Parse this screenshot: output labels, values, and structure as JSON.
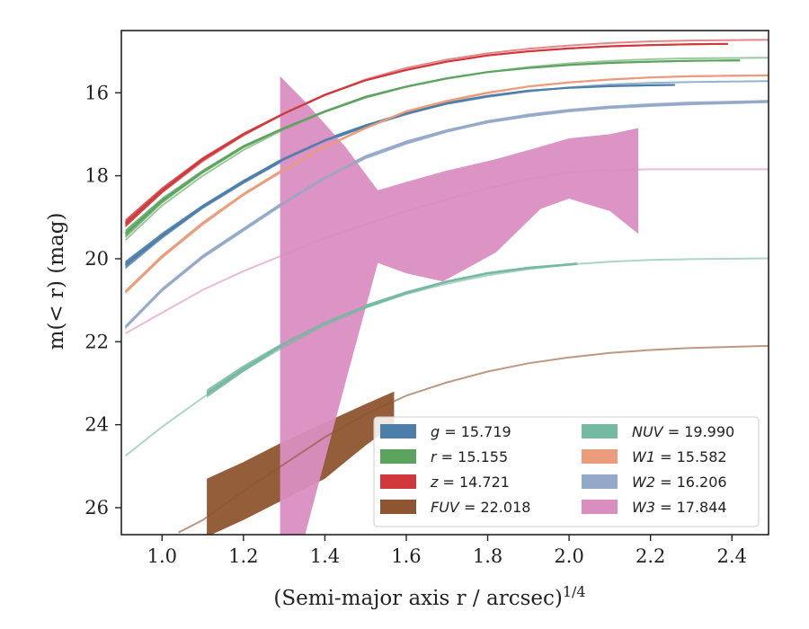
{
  "chart_data": {
    "type": "line",
    "xlabel": "(Semi-major axis r / arcsec)",
    "xlabel_exponent": "1/4",
    "ylabel": "m(< r) (mag)",
    "xlim": [
      0.9,
      2.49
    ],
    "ylim": [
      26.65,
      14.5
    ],
    "y_inverted": true,
    "x_ticks": [
      1.0,
      1.2,
      1.4,
      1.6,
      1.8,
      2.0,
      2.2,
      2.4
    ],
    "x_tick_labels": [
      "1.0",
      "1.2",
      "1.4",
      "1.6",
      "1.8",
      "2.0",
      "2.2",
      "2.4"
    ],
    "y_ticks": [
      16,
      18,
      20,
      22,
      24,
      26
    ],
    "y_tick_labels": [
      "16",
      "18",
      "20",
      "22",
      "24",
      "26"
    ],
    "grid": false,
    "legend_position": "lower-right",
    "series": [
      {
        "name": "g = 15.719",
        "color": "#4c7eaa",
        "data_x": [
          0.91,
          1.0,
          1.1,
          1.2,
          1.3,
          1.4,
          1.5,
          1.6,
          1.7,
          1.8,
          1.9,
          2.0,
          2.1,
          2.2,
          2.26
        ],
        "data_y": [
          20.15,
          19.45,
          18.75,
          18.15,
          17.6,
          17.15,
          16.8,
          16.5,
          16.25,
          16.08,
          15.95,
          15.88,
          15.84,
          15.82,
          15.81
        ],
        "data_hi": [
          20.05,
          19.38,
          18.7,
          18.1,
          17.55,
          17.1,
          16.76,
          16.46,
          16.22,
          16.05,
          15.93,
          15.86,
          15.82,
          15.8,
          15.79
        ],
        "data_lo": [
          20.25,
          19.52,
          18.8,
          18.2,
          17.65,
          17.2,
          16.84,
          16.54,
          16.28,
          16.11,
          15.97,
          15.9,
          15.86,
          15.84,
          15.83
        ],
        "model_x": [
          0.91,
          1.0,
          1.1,
          1.2,
          1.3,
          1.4,
          1.5,
          1.6,
          1.7,
          1.8,
          1.9,
          2.0,
          2.1,
          2.2,
          2.3,
          2.49
        ],
        "model_y": [
          20.1,
          19.4,
          18.72,
          18.12,
          17.58,
          17.14,
          16.78,
          16.5,
          16.27,
          16.1,
          15.97,
          15.87,
          15.8,
          15.76,
          15.74,
          15.719
        ]
      },
      {
        "name": "r = 15.155",
        "color": "#5ca35e",
        "data_x": [
          0.91,
          1.0,
          1.1,
          1.2,
          1.3,
          1.4,
          1.5,
          1.6,
          1.7,
          1.8,
          1.9,
          2.0,
          2.1,
          2.2,
          2.3,
          2.42
        ],
        "data_y": [
          19.4,
          18.6,
          17.9,
          17.3,
          16.85,
          16.45,
          16.1,
          15.85,
          15.65,
          15.5,
          15.4,
          15.33,
          15.28,
          15.25,
          15.23,
          15.22
        ],
        "data_hi": [
          19.3,
          18.53,
          17.85,
          17.26,
          16.82,
          16.42,
          16.07,
          15.83,
          15.63,
          15.48,
          15.38,
          15.31,
          15.26,
          15.23,
          15.21,
          15.2
        ],
        "data_lo": [
          19.5,
          18.67,
          17.95,
          17.34,
          16.88,
          16.48,
          16.13,
          15.87,
          15.67,
          15.52,
          15.42,
          15.35,
          15.3,
          15.27,
          15.25,
          15.24
        ],
        "model_x": [
          0.91,
          1.0,
          1.1,
          1.2,
          1.3,
          1.4,
          1.5,
          1.6,
          1.7,
          1.8,
          1.9,
          2.0,
          2.1,
          2.2,
          2.3,
          2.49
        ],
        "model_y": [
          19.55,
          18.72,
          18.0,
          17.38,
          16.88,
          16.46,
          16.12,
          15.86,
          15.66,
          15.5,
          15.38,
          15.29,
          15.23,
          15.19,
          15.17,
          15.155
        ]
      },
      {
        "name": "z = 14.721",
        "color": "#d0383b",
        "data_x": [
          0.91,
          1.0,
          1.1,
          1.2,
          1.3,
          1.4,
          1.5,
          1.6,
          1.7,
          1.8,
          1.9,
          2.0,
          2.1,
          2.2,
          2.3,
          2.39
        ],
        "data_y": [
          19.15,
          18.35,
          17.6,
          17.0,
          16.5,
          16.05,
          15.7,
          15.45,
          15.25,
          15.1,
          15.0,
          14.93,
          14.88,
          14.85,
          14.83,
          14.82
        ],
        "data_hi": [
          19.05,
          18.28,
          17.55,
          16.96,
          16.47,
          16.02,
          15.68,
          15.43,
          15.23,
          15.08,
          14.98,
          14.91,
          14.86,
          14.83,
          14.81,
          14.8
        ],
        "data_lo": [
          19.25,
          18.42,
          17.65,
          17.04,
          16.53,
          16.08,
          15.72,
          15.47,
          15.27,
          15.12,
          15.02,
          14.95,
          14.9,
          14.87,
          14.85,
          14.84
        ],
        "model_x": [
          0.91,
          1.0,
          1.1,
          1.2,
          1.3,
          1.4,
          1.5,
          1.6,
          1.7,
          1.8,
          1.9,
          2.0,
          2.1,
          2.2,
          2.3,
          2.49
        ],
        "model_y": [
          19.2,
          18.4,
          17.65,
          17.03,
          16.5,
          16.05,
          15.68,
          15.4,
          15.2,
          15.05,
          14.94,
          14.86,
          14.8,
          14.76,
          14.74,
          14.721
        ]
      },
      {
        "name": "FUV = 22.018",
        "color": "#8f5530",
        "data_x": [
          1.11,
          1.2,
          1.3,
          1.4,
          1.5,
          1.57
        ],
        "data_y": [
          26.0,
          25.6,
          25.1,
          24.6,
          24.0,
          23.6
        ],
        "data_hi": [
          25.3,
          24.9,
          24.4,
          23.95,
          23.5,
          23.2
        ],
        "data_lo": [
          26.7,
          26.3,
          25.8,
          25.3,
          24.5,
          24.0
        ],
        "model_x": [
          1.04,
          1.1,
          1.2,
          1.3,
          1.4,
          1.5,
          1.6,
          1.7,
          1.8,
          1.9,
          2.0,
          2.1,
          2.2,
          2.3,
          2.49
        ],
        "model_y": [
          26.6,
          26.3,
          25.6,
          24.95,
          24.3,
          23.75,
          23.3,
          22.98,
          22.72,
          22.52,
          22.38,
          22.27,
          22.2,
          22.15,
          22.1
        ]
      },
      {
        "name": "NUV = 19.990",
        "color": "#74b9a1",
        "data_x": [
          1.11,
          1.2,
          1.3,
          1.4,
          1.5,
          1.6,
          1.7,
          1.8,
          1.9,
          2.0,
          2.02
        ],
        "data_y": [
          23.25,
          22.65,
          22.05,
          21.55,
          21.15,
          20.82,
          20.55,
          20.35,
          20.22,
          20.14,
          20.12
        ],
        "data_hi": [
          23.15,
          22.57,
          22.0,
          21.5,
          21.1,
          20.78,
          20.52,
          20.32,
          20.19,
          20.11,
          20.09
        ],
        "data_lo": [
          23.35,
          22.73,
          22.1,
          21.6,
          21.2,
          20.86,
          20.58,
          20.38,
          20.25,
          20.17,
          20.15
        ],
        "model_x": [
          0.91,
          1.0,
          1.1,
          1.2,
          1.3,
          1.4,
          1.5,
          1.6,
          1.7,
          1.8,
          1.9,
          2.0,
          2.1,
          2.2,
          2.3,
          2.49
        ],
        "model_y": [
          24.75,
          24.05,
          23.35,
          22.7,
          22.12,
          21.6,
          21.18,
          20.85,
          20.6,
          20.4,
          20.25,
          20.14,
          20.07,
          20.03,
          20.01,
          19.99
        ]
      },
      {
        "name": "W1 = 15.582",
        "color": "#ea9c7b",
        "data_x": [
          0.91,
          1.0,
          1.1,
          1.2,
          1.3,
          1.4,
          1.5,
          1.6,
          1.7,
          1.8,
          1.9,
          2.0,
          2.1,
          2.2,
          2.3,
          2.49
        ],
        "data_y": [
          20.8,
          19.95,
          19.15,
          18.45,
          17.85,
          17.3,
          16.85,
          16.45,
          16.2,
          16.0,
          15.85,
          15.75,
          15.68,
          15.63,
          15.6,
          15.58
        ],
        "data_hi": [
          20.75,
          19.9,
          19.1,
          18.41,
          17.81,
          17.27,
          16.82,
          16.42,
          16.17,
          15.97,
          15.83,
          15.73,
          15.66,
          15.61,
          15.58,
          15.56
        ],
        "data_lo": [
          20.85,
          20.0,
          19.2,
          18.49,
          17.89,
          17.33,
          16.88,
          16.48,
          16.23,
          16.03,
          15.87,
          15.77,
          15.7,
          15.65,
          15.62,
          15.6
        ],
        "model_x": [
          0.91,
          1.0,
          1.1,
          1.2,
          1.3,
          1.4,
          1.5,
          1.6,
          1.7,
          1.8,
          1.9,
          2.0,
          2.1,
          2.2,
          2.3,
          2.49
        ],
        "model_y": [
          20.8,
          19.95,
          19.15,
          18.45,
          17.85,
          17.3,
          16.85,
          16.45,
          16.2,
          16.0,
          15.85,
          15.75,
          15.68,
          15.63,
          15.6,
          15.582
        ]
      },
      {
        "name": "W2 = 16.206",
        "color": "#94a8c8",
        "data_x": [
          0.91,
          1.0,
          1.1,
          1.2,
          1.3,
          1.4,
          1.5,
          1.6,
          1.7,
          1.8,
          1.9,
          2.0,
          2.1,
          2.2,
          2.3,
          2.49
        ],
        "data_y": [
          21.65,
          20.75,
          19.95,
          19.3,
          18.65,
          18.05,
          17.55,
          17.2,
          16.92,
          16.7,
          16.55,
          16.43,
          16.35,
          16.3,
          16.26,
          16.21
        ],
        "data_hi": [
          21.6,
          20.7,
          19.9,
          19.25,
          18.6,
          18.0,
          17.5,
          17.15,
          16.88,
          16.66,
          16.51,
          16.39,
          16.31,
          16.26,
          16.22,
          16.17
        ],
        "data_lo": [
          21.7,
          20.8,
          20.0,
          19.35,
          18.7,
          18.1,
          17.6,
          17.25,
          16.96,
          16.74,
          16.59,
          16.47,
          16.39,
          16.34,
          16.3,
          16.25
        ],
        "model_x": [
          0.91,
          1.0,
          1.1,
          1.2,
          1.3,
          1.4,
          1.5,
          1.6,
          1.7,
          1.8,
          1.9,
          2.0,
          2.1,
          2.2,
          2.3,
          2.49
        ],
        "model_y": [
          21.65,
          20.75,
          19.95,
          19.28,
          18.65,
          18.05,
          17.55,
          17.18,
          16.9,
          16.68,
          16.52,
          16.41,
          16.33,
          16.27,
          16.23,
          16.206
        ]
      },
      {
        "name": "W3 = 17.844",
        "color": "#d98ec0",
        "data_x": [
          1.29,
          1.35,
          1.45,
          1.53,
          1.6,
          1.69,
          1.82,
          1.93,
          2.0,
          2.1,
          2.17
        ],
        "data_y": [
          17.5,
          19.5,
          18.8,
          19.2,
          19.0,
          18.6,
          18.6,
          18.1,
          17.8,
          17.9,
          18.1
        ],
        "data_hi": [
          15.6,
          16.2,
          17.3,
          18.35,
          18.15,
          17.9,
          17.6,
          17.3,
          17.1,
          17.0,
          16.85
        ],
        "data_lo": [
          26.7,
          26.7,
          23.0,
          20.1,
          20.35,
          20.55,
          19.85,
          18.8,
          18.55,
          18.85,
          19.4
        ],
        "model_x": [
          0.91,
          1.0,
          1.1,
          1.2,
          1.3,
          1.4,
          1.5,
          1.6,
          1.7,
          1.8,
          1.9,
          2.0,
          2.1,
          2.2,
          2.3,
          2.49
        ],
        "model_y": [
          21.8,
          21.3,
          20.75,
          20.3,
          19.9,
          19.5,
          19.18,
          18.85,
          18.57,
          18.3,
          18.08,
          17.92,
          17.86,
          17.845,
          17.844,
          17.844
        ]
      }
    ],
    "legend_columns": [
      [
        "g = 15.719",
        "r = 15.155",
        "z = 14.721",
        "FUV = 22.018"
      ],
      [
        "NUV = 19.990",
        "W1 = 15.582",
        "W2 = 16.206",
        "W3 = 17.844"
      ]
    ]
  }
}
